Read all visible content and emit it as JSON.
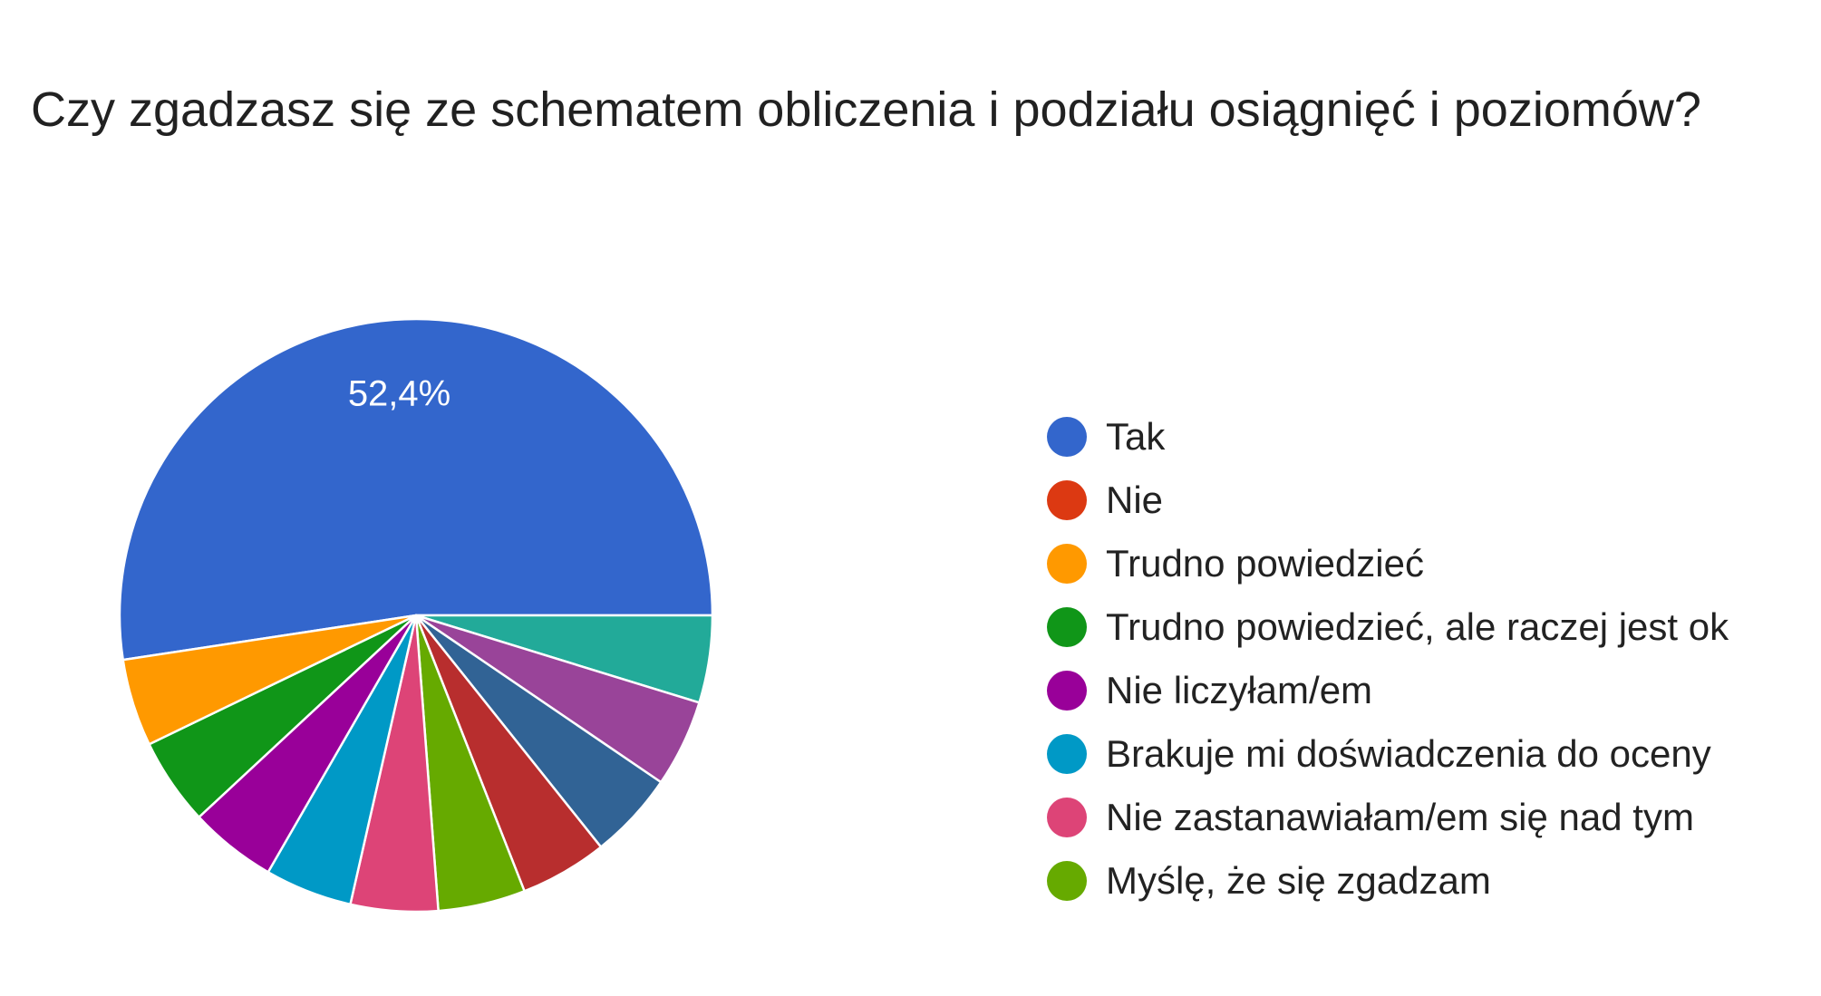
{
  "chart_data": {
    "type": "pie",
    "title": "Czy zgadzasz się ze schematem obliczenia i podziału osiągnięć i poziomów?",
    "legend_position": "right",
    "slices": [
      {
        "label": "Tak",
        "value": 52.4,
        "color": "#3366cc",
        "data_label": "52,4%"
      },
      {
        "label": "",
        "value": 4.76,
        "color": "#22aa99"
      },
      {
        "label": "",
        "value": 4.76,
        "color": "#994499"
      },
      {
        "label": "",
        "value": 4.76,
        "color": "#316395"
      },
      {
        "label": "",
        "value": 4.76,
        "color": "#b82e2e"
      },
      {
        "label": "Myślę, że się zgadzam",
        "value": 4.76,
        "color": "#66aa00"
      },
      {
        "label": "Nie zastanawiałam/em się nad tym",
        "value": 4.76,
        "color": "#dd4477"
      },
      {
        "label": "Brakuje mi doświadczenia do oceny",
        "value": 4.76,
        "color": "#0099c6"
      },
      {
        "label": "Nie liczyłam/em",
        "value": 4.76,
        "color": "#990099"
      },
      {
        "label": "Trudno powiedzieć, ale raczej jest ok",
        "value": 4.76,
        "color": "#109618"
      },
      {
        "label": "Trudno powiedzieć",
        "value": 4.76,
        "color": "#ff9900"
      }
    ],
    "legend": [
      {
        "label": "Tak",
        "color": "#3366cc"
      },
      {
        "label": "Nie",
        "color": "#dc3912"
      },
      {
        "label": "Trudno powiedzieć",
        "color": "#ff9900"
      },
      {
        "label": "Trudno powiedzieć, ale raczej jest ok",
        "color": "#109618"
      },
      {
        "label": "Nie liczyłam/em",
        "color": "#990099"
      },
      {
        "label": "Brakuje mi doświadczenia do oceny",
        "color": "#0099c6"
      },
      {
        "label": "Nie zastanawiałam/em się nad tym",
        "color": "#dd4477"
      },
      {
        "label": "Myślę, że się zgadzam",
        "color": "#66aa00"
      }
    ]
  }
}
